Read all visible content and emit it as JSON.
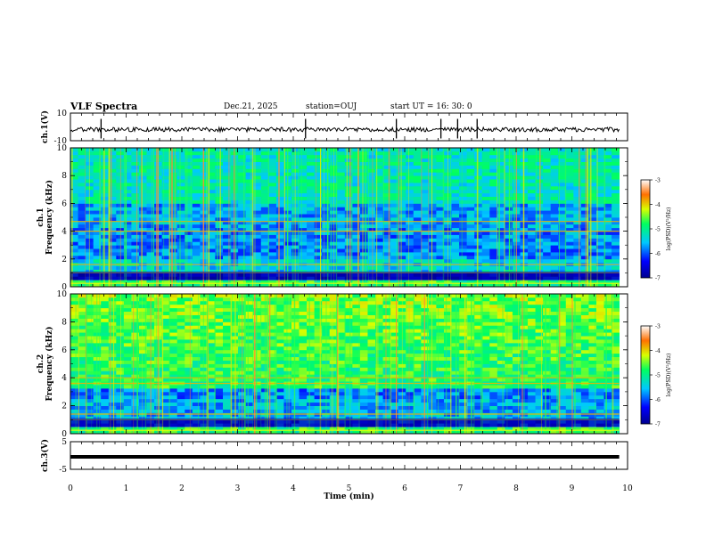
{
  "header": {
    "title": "VLF Spectra",
    "date": "Dec.21, 2025",
    "station": "station=OUJ",
    "start_ut": "start  UT =   16: 30: 0"
  },
  "chart_data": [
    {
      "type": "line",
      "panel": "ch1-waveform",
      "ylabel": "ch.1(V)",
      "ylim": [
        -10,
        10
      ],
      "yticks": [
        "10",
        "-10"
      ],
      "baseline_v": 0,
      "spikes_min": [
        0.55,
        4.22,
        5.85,
        6.65,
        6.95,
        7.3
      ]
    },
    {
      "type": "heatmap",
      "panel": "ch1-spectrogram",
      "ylabel": "ch.1\nFrequency  (kHz)",
      "ylim": [
        0,
        10
      ],
      "yticks": [
        "0",
        "2",
        "4",
        "6",
        "8",
        "10"
      ],
      "colorbar": {
        "label": "log(PSD)(V²/Hz)",
        "min": -7,
        "max": -3,
        "ticks": [
          "-3",
          "-4",
          "-5",
          "-6",
          "-7"
        ]
      },
      "bands_khz": [
        1.0,
        1.6,
        4.0,
        4.7
      ]
    },
    {
      "type": "heatmap",
      "panel": "ch2-spectrogram",
      "ylabel": "ch.2\nFrequency  (kHz)",
      "ylim": [
        0,
        10
      ],
      "yticks": [
        "0",
        "2",
        "4",
        "6",
        "8",
        "10"
      ],
      "colorbar": {
        "label": "log(PSD)(V²/Hz)",
        "min": -7,
        "max": -3,
        "ticks": [
          "-3",
          "-4",
          "-5",
          "-6",
          "-7"
        ]
      },
      "bands_khz": [
        1.0,
        1.4,
        3.6,
        4.0
      ]
    },
    {
      "type": "line",
      "panel": "ch3-waveform",
      "ylabel": "ch.3(V)",
      "ylim": [
        -5,
        5
      ],
      "yticks": [
        "5",
        "-5"
      ],
      "baseline_v": -0.5
    }
  ],
  "xaxis": {
    "label": "Time  (min)",
    "xlim": [
      0,
      10
    ],
    "ticks": [
      "0",
      "1",
      "2",
      "3",
      "4",
      "5",
      "6",
      "7",
      "8",
      "9",
      "10"
    ],
    "data_end_min": 9.85
  }
}
